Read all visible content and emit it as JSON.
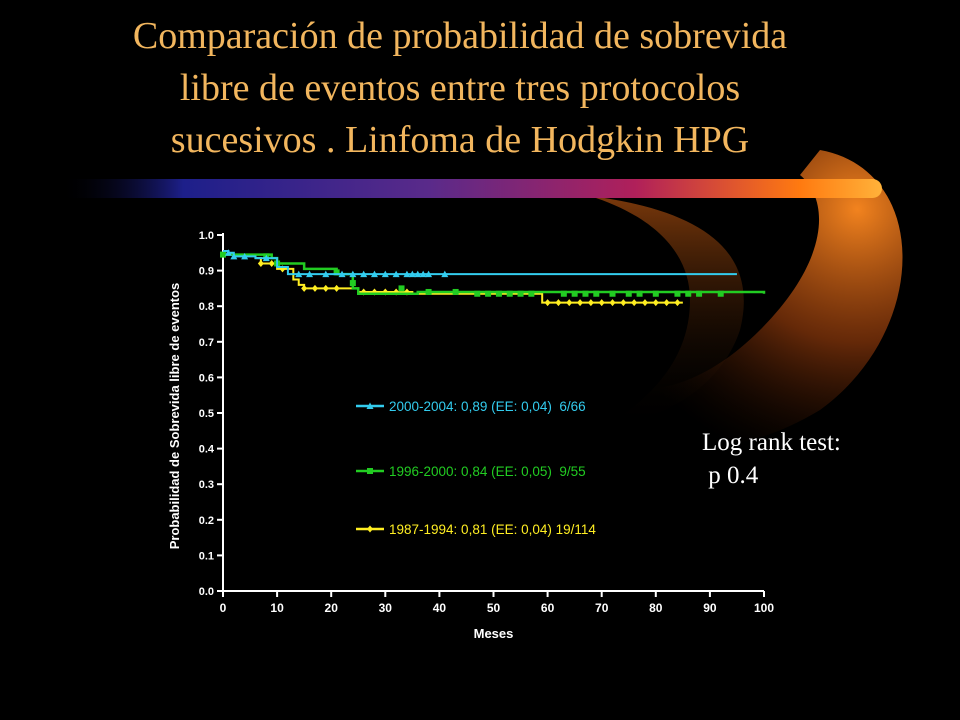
{
  "slide": {
    "title_lines": [
      "Comparación de probabilidad de sobrevida",
      "libre de eventos entre tres protocolos",
      "sucesivos . Linfoma de Hodgkin HPG"
    ],
    "annotation_lines": [
      "Log rank test:",
      " p 0.4"
    ],
    "colors": {
      "title": "#f2b65e",
      "background": "#000000",
      "annotation": "#ffffff"
    }
  },
  "chart_data": {
    "type": "line",
    "xlabel": "Meses",
    "ylabel": "Probabilidad de Sobrevida libre de eventos",
    "xlim": [
      0,
      100
    ],
    "ylim": [
      0,
      1
    ],
    "x_ticks": [
      "0",
      "10",
      "20",
      "30",
      "40",
      "50",
      "60",
      "70",
      "80",
      "90",
      "100"
    ],
    "y_ticks": [
      "0.0",
      "0.1",
      "0.2",
      "0.3",
      "0.4",
      "0.5",
      "0.6",
      "0.7",
      "0.8",
      "0.9",
      "1.0"
    ],
    "grid": false,
    "legend_position": "center",
    "series": [
      {
        "name": "2000-2004: 0,89 (EE: 0,04)  6/66",
        "color": "#33ccee",
        "marker": "triangle",
        "x": [
          0,
          1,
          2,
          6,
          10,
          12,
          95
        ],
        "y": [
          0.955,
          0.95,
          0.94,
          0.935,
          0.91,
          0.89,
          0.89
        ],
        "marker_x": [
          1,
          2,
          4,
          8,
          14,
          16,
          19,
          22,
          24,
          26,
          28,
          30,
          32,
          34,
          35,
          36,
          37,
          38,
          41
        ],
        "marker_y": [
          0.95,
          0.94,
          0.94,
          0.935,
          0.89,
          0.89,
          0.89,
          0.89,
          0.89,
          0.89,
          0.89,
          0.89,
          0.89,
          0.89,
          0.89,
          0.89,
          0.89,
          0.89,
          0.89
        ]
      },
      {
        "name": "1996-2000: 0,84 (EE: 0,05)  9/55",
        "color": "#22cc22",
        "marker": "square",
        "x": [
          0,
          9,
          10,
          15,
          21,
          24,
          25,
          36,
          100
        ],
        "y": [
          0.945,
          0.935,
          0.92,
          0.905,
          0.89,
          0.85,
          0.835,
          0.84,
          0.835
        ],
        "marker_x": [
          0,
          8,
          10,
          21,
          24,
          33,
          38,
          43,
          47,
          49,
          51,
          53,
          55,
          57,
          63,
          65,
          67,
          69,
          72,
          75,
          77,
          80,
          84,
          86,
          88,
          92
        ],
        "marker_y": [
          0.945,
          0.94,
          0.92,
          0.895,
          0.865,
          0.85,
          0.84,
          0.84,
          0.835,
          0.835,
          0.835,
          0.835,
          0.835,
          0.835,
          0.835,
          0.835,
          0.835,
          0.835,
          0.835,
          0.835,
          0.835,
          0.835,
          0.835,
          0.835,
          0.835,
          0.835
        ]
      },
      {
        "name": "1987-1994: 0,81 (EE: 0,04) 19/114",
        "color": "#ffee22",
        "marker": "diamond",
        "x": [
          0,
          6,
          7,
          10,
          13,
          14,
          15,
          24,
          25,
          35,
          59,
          60,
          85
        ],
        "y": [
          0.945,
          0.935,
          0.92,
          0.905,
          0.875,
          0.86,
          0.85,
          0.85,
          0.84,
          0.835,
          0.81,
          0.81,
          0.81
        ],
        "marker_x": [
          7,
          9,
          11,
          15,
          17,
          19,
          21,
          26,
          28,
          30,
          32,
          34,
          60,
          62,
          64,
          66,
          68,
          70,
          72,
          74,
          76,
          78,
          80,
          82,
          84
        ],
        "marker_y": [
          0.92,
          0.92,
          0.905,
          0.85,
          0.85,
          0.85,
          0.85,
          0.84,
          0.84,
          0.84,
          0.84,
          0.84,
          0.81,
          0.81,
          0.81,
          0.81,
          0.81,
          0.81,
          0.81,
          0.81,
          0.81,
          0.81,
          0.81,
          0.81,
          0.81
        ]
      }
    ]
  }
}
